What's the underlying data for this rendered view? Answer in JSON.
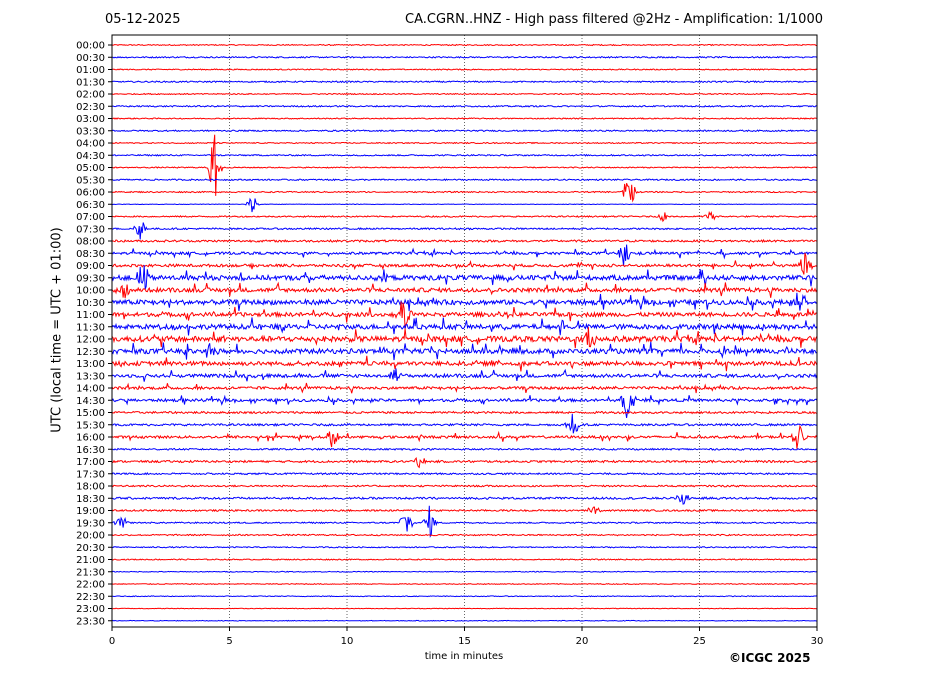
{
  "header": {
    "date": "05-12-2025",
    "station_title": "CA.CGRN..HNZ - High pass filtered @2Hz - Amplification: 1/1000"
  },
  "footer": {
    "copyright": "©ICGC 2025"
  },
  "chart_data": {
    "type": "line",
    "title": "CA.CGRN..HNZ - High pass filtered @2Hz - Amplification: 1/1000",
    "xlabel": "time in minutes",
    "ylabel": "UTC (local time = UTC + 01:00)",
    "xlim": [
      0,
      30
    ],
    "x_ticks": [
      0,
      5,
      10,
      15,
      20,
      25,
      30
    ],
    "grid": "vertical dotted lines at x ticks",
    "series_colors": [
      "#ff0000",
      "#0000ff"
    ],
    "row_labels": [
      "00:00",
      "00:30",
      "01:00",
      "01:30",
      "02:00",
      "02:30",
      "03:00",
      "03:30",
      "04:00",
      "04:30",
      "05:00",
      "05:30",
      "06:00",
      "06:30",
      "07:00",
      "07:30",
      "08:00",
      "08:30",
      "09:00",
      "09:30",
      "10:00",
      "10:30",
      "11:00",
      "11:30",
      "12:00",
      "12:30",
      "13:00",
      "13:30",
      "14:00",
      "14:30",
      "15:00",
      "15:30",
      "16:00",
      "16:30",
      "17:00",
      "17:30",
      "18:00",
      "18:30",
      "19:00",
      "19:30",
      "20:00",
      "20:30",
      "21:00",
      "21:30",
      "22:00",
      "22:30",
      "23:00",
      "23:30"
    ],
    "noise_level": [
      0.08,
      0.1,
      0.08,
      0.1,
      0.08,
      0.1,
      0.08,
      0.1,
      0.08,
      0.1,
      0.08,
      0.1,
      0.09,
      0.04,
      0.1,
      0.12,
      0.15,
      0.18,
      0.2,
      0.35,
      0.3,
      0.35,
      0.3,
      0.35,
      0.4,
      0.35,
      0.3,
      0.25,
      0.2,
      0.2,
      0.15,
      0.15,
      0.18,
      0.12,
      0.15,
      0.12,
      0.12,
      0.15,
      0.12,
      0.1,
      0.1,
      0.08,
      0.08,
      0.06,
      0.06,
      0.06,
      0.04,
      0.05
    ],
    "events": [
      {
        "row": 10,
        "t": 4.4,
        "amp": 6
      },
      {
        "row": 12,
        "t": 22.0,
        "amp": 2.5
      },
      {
        "row": 13,
        "t": 6.0,
        "amp": 1.5
      },
      {
        "row": 14,
        "t": 23.5,
        "amp": 0.8
      },
      {
        "row": 14,
        "t": 25.5,
        "amp": 0.8
      },
      {
        "row": 15,
        "t": 1.2,
        "amp": 2
      },
      {
        "row": 17,
        "t": 21.8,
        "amp": 2
      },
      {
        "row": 18,
        "t": 29.5,
        "amp": 2
      },
      {
        "row": 19,
        "t": 1.3,
        "amp": 3
      },
      {
        "row": 19,
        "t": 11.5,
        "amp": 1.2
      },
      {
        "row": 20,
        "t": 0.5,
        "amp": 2
      },
      {
        "row": 21,
        "t": 29.3,
        "amp": 2
      },
      {
        "row": 22,
        "t": 12.5,
        "amp": 2.5
      },
      {
        "row": 24,
        "t": 20.3,
        "amp": 2
      },
      {
        "row": 25,
        "t": 4.2,
        "amp": 1.5
      },
      {
        "row": 27,
        "t": 12.0,
        "amp": 1.2
      },
      {
        "row": 29,
        "t": 21.9,
        "amp": 2.5
      },
      {
        "row": 31,
        "t": 19.6,
        "amp": 2.5
      },
      {
        "row": 32,
        "t": 9.4,
        "amp": 2
      },
      {
        "row": 32,
        "t": 29.2,
        "amp": 2
      },
      {
        "row": 34,
        "t": 13.1,
        "amp": 1
      },
      {
        "row": 37,
        "t": 24.3,
        "amp": 1.5
      },
      {
        "row": 38,
        "t": 20.5,
        "amp": 0.8
      },
      {
        "row": 39,
        "t": 12.5,
        "amp": 2.5
      },
      {
        "row": 39,
        "t": 13.5,
        "amp": 2.5
      },
      {
        "row": 39,
        "t": 0.4,
        "amp": 1
      }
    ]
  }
}
